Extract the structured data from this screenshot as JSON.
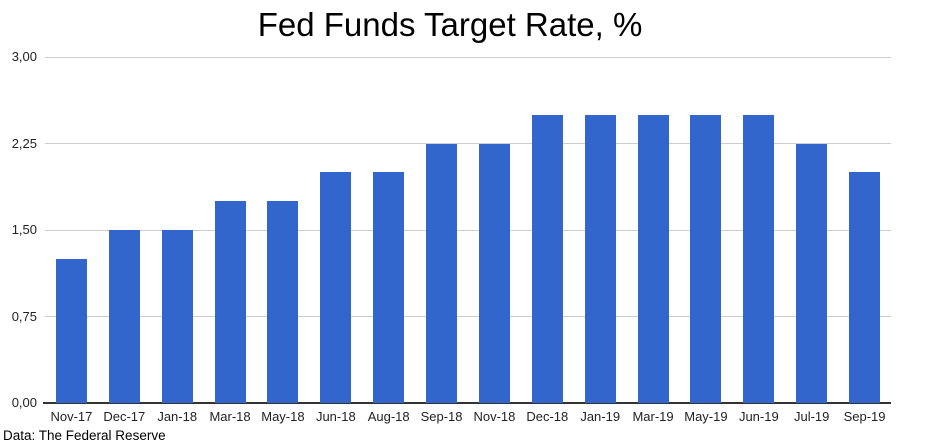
{
  "chart_data": {
    "type": "bar",
    "title": "Fed Funds Target Rate, %",
    "categories": [
      "Nov-17",
      "Dec-17",
      "Jan-18",
      "Mar-18",
      "May-18",
      "Jun-18",
      "Aug-18",
      "Sep-18",
      "Nov-18",
      "Dec-18",
      "Jan-19",
      "Mar-19",
      "May-19",
      "Jun-19",
      "Jul-19",
      "Sep-19"
    ],
    "values": [
      1.25,
      1.5,
      1.5,
      1.75,
      1.75,
      2.0,
      2.0,
      2.25,
      2.25,
      2.5,
      2.5,
      2.5,
      2.5,
      2.5,
      2.25,
      2.0
    ],
    "xlabel": "",
    "ylabel": "",
    "ylim": [
      0,
      3
    ],
    "yticks": [
      0,
      0.75,
      1.5,
      2.25,
      3
    ],
    "ytick_labels": [
      "0,00",
      "0,75",
      "1,50",
      "2,25",
      "3,00"
    ],
    "grid": true,
    "legend_position": "none",
    "bar_color": "#3366cc",
    "gridline_color": "#cccccc",
    "axis_line_color": "#333333",
    "tick_label_color": "#222222",
    "title_color": "#000000"
  },
  "footer": {
    "source": "Data: The Federal Reserve"
  }
}
